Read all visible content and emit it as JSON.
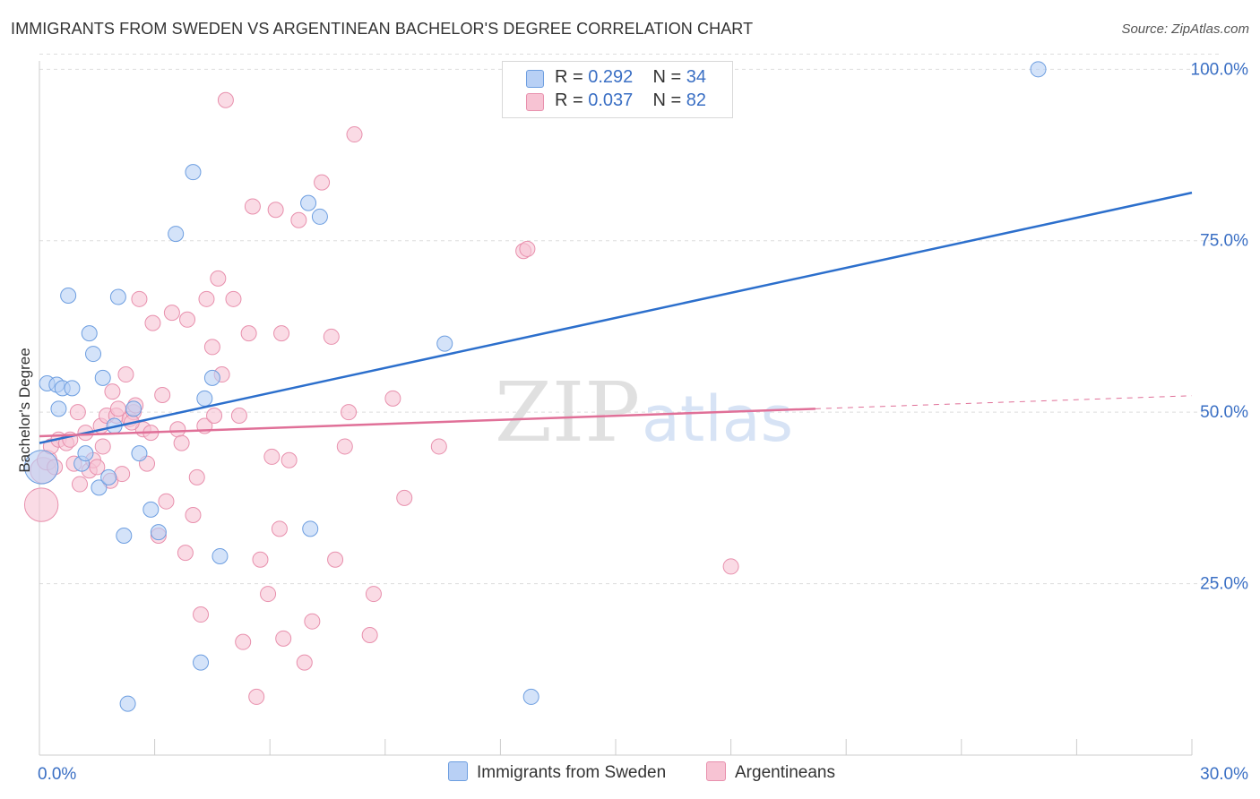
{
  "title": "IMMIGRANTS FROM SWEDEN VS ARGENTINEAN BACHELOR'S DEGREE CORRELATION CHART",
  "source": "Source: ZipAtlas.com",
  "watermark": {
    "zip": "ZIP",
    "atlas": "atlas"
  },
  "legend_top": {
    "rows": [
      {
        "r_label": "R =",
        "r_value": "0.292",
        "n_label": "N =",
        "n_value": "34"
      },
      {
        "r_label": "R =",
        "r_value": "0.037",
        "n_label": "N =",
        "n_value": "82"
      }
    ]
  },
  "legend_bottom": {
    "items": [
      {
        "label": "Immigrants from Sweden"
      },
      {
        "label": "Argentineans"
      }
    ]
  },
  "colors": {
    "sweden_fill": "#b8d0f5",
    "sweden_stroke": "#6d9ee0",
    "sweden_line": "#2c6fcc",
    "arg_fill": "#f7c3d3",
    "arg_stroke": "#e890ad",
    "arg_line": "#e07098",
    "axis_label": "#3a6fc4",
    "grid": "#dddddd"
  },
  "chart_data": {
    "type": "scatter",
    "title": "IMMIGRANTS FROM SWEDEN VS ARGENTINEAN BACHELOR'S DEGREE CORRELATION CHART",
    "xlabel": "",
    "ylabel": "Bachelor's Degree",
    "xlim": [
      0,
      30
    ],
    "ylim": [
      0,
      102
    ],
    "x_tick_labels": [
      {
        "value": 0,
        "label": "0.0%"
      },
      {
        "value": 30,
        "label": "30.0%"
      }
    ],
    "y_tick_labels": [
      {
        "value": 25,
        "label": "25.0%"
      },
      {
        "value": 50,
        "label": "50.0%"
      },
      {
        "value": 75,
        "label": "75.0%"
      },
      {
        "value": 100,
        "label": "100.0%"
      }
    ],
    "series": [
      {
        "name": "Immigrants from Sweden",
        "R": 0.292,
        "N": 34,
        "trend": {
          "x": [
            0,
            30
          ],
          "y": [
            45.5,
            82.0
          ]
        },
        "points": [
          {
            "x": 0.05,
            "y": 42.0,
            "s": 2.2
          },
          {
            "x": 0.2,
            "y": 54.2,
            "s": 1
          },
          {
            "x": 0.45,
            "y": 54.0,
            "s": 1
          },
          {
            "x": 0.5,
            "y": 50.5,
            "s": 1
          },
          {
            "x": 0.6,
            "y": 53.5,
            "s": 1
          },
          {
            "x": 0.75,
            "y": 67.0,
            "s": 1
          },
          {
            "x": 0.85,
            "y": 53.5,
            "s": 1
          },
          {
            "x": 1.1,
            "y": 42.5,
            "s": 1
          },
          {
            "x": 1.2,
            "y": 44.0,
            "s": 1
          },
          {
            "x": 1.3,
            "y": 61.5,
            "s": 1
          },
          {
            "x": 1.4,
            "y": 58.5,
            "s": 1
          },
          {
            "x": 1.55,
            "y": 39.0,
            "s": 1
          },
          {
            "x": 1.65,
            "y": 55.0,
            "s": 1
          },
          {
            "x": 1.8,
            "y": 40.5,
            "s": 1
          },
          {
            "x": 1.95,
            "y": 48.0,
            "s": 1
          },
          {
            "x": 2.05,
            "y": 66.8,
            "s": 1
          },
          {
            "x": 2.2,
            "y": 32.0,
            "s": 1
          },
          {
            "x": 2.3,
            "y": 7.5,
            "s": 1
          },
          {
            "x": 2.45,
            "y": 50.5,
            "s": 1
          },
          {
            "x": 2.6,
            "y": 44.0,
            "s": 1
          },
          {
            "x": 2.9,
            "y": 35.8,
            "s": 1
          },
          {
            "x": 3.1,
            "y": 32.5,
            "s": 1
          },
          {
            "x": 3.55,
            "y": 76.0,
            "s": 1
          },
          {
            "x": 4.0,
            "y": 85.0,
            "s": 1
          },
          {
            "x": 4.2,
            "y": 13.5,
            "s": 1
          },
          {
            "x": 4.3,
            "y": 52.0,
            "s": 1
          },
          {
            "x": 4.5,
            "y": 55.0,
            "s": 1
          },
          {
            "x": 4.7,
            "y": 29.0,
            "s": 1
          },
          {
            "x": 7.0,
            "y": 80.5,
            "s": 1
          },
          {
            "x": 7.05,
            "y": 33.0,
            "s": 1
          },
          {
            "x": 7.3,
            "y": 78.5,
            "s": 1
          },
          {
            "x": 10.55,
            "y": 60.0,
            "s": 1
          },
          {
            "x": 12.8,
            "y": 8.5,
            "s": 1
          },
          {
            "x": 26.0,
            "y": 100.0,
            "s": 1
          }
        ]
      },
      {
        "name": "Argentineans",
        "R": 0.037,
        "N": 82,
        "trend": {
          "x": [
            0,
            20.2
          ],
          "y": [
            46.5,
            50.5
          ]
        },
        "trend_dashed": {
          "x": [
            20.2,
            30
          ],
          "y": [
            50.5,
            52.4
          ]
        },
        "points": [
          {
            "x": 0.05,
            "y": 36.5,
            "s": 2.2
          },
          {
            "x": 0.1,
            "y": 41.5,
            "s": 1.7
          },
          {
            "x": 0.2,
            "y": 43.0,
            "s": 1.3
          },
          {
            "x": 0.3,
            "y": 45.0,
            "s": 1
          },
          {
            "x": 0.4,
            "y": 42.0,
            "s": 1
          },
          {
            "x": 0.5,
            "y": 46.0,
            "s": 1
          },
          {
            "x": 0.7,
            "y": 45.5,
            "s": 1
          },
          {
            "x": 0.8,
            "y": 46.0,
            "s": 1
          },
          {
            "x": 0.9,
            "y": 42.5,
            "s": 1
          },
          {
            "x": 1.0,
            "y": 50.0,
            "s": 1
          },
          {
            "x": 1.05,
            "y": 39.5,
            "s": 1
          },
          {
            "x": 1.2,
            "y": 47.0,
            "s": 1
          },
          {
            "x": 1.3,
            "y": 41.5,
            "s": 1
          },
          {
            "x": 1.4,
            "y": 43.0,
            "s": 1
          },
          {
            "x": 1.5,
            "y": 42.0,
            "s": 1
          },
          {
            "x": 1.6,
            "y": 48.0,
            "s": 1
          },
          {
            "x": 1.65,
            "y": 45.0,
            "s": 1
          },
          {
            "x": 1.75,
            "y": 49.5,
            "s": 1
          },
          {
            "x": 1.85,
            "y": 40.0,
            "s": 1
          },
          {
            "x": 1.9,
            "y": 53.0,
            "s": 1
          },
          {
            "x": 2.0,
            "y": 49.5,
            "s": 1
          },
          {
            "x": 2.05,
            "y": 50.5,
            "s": 1
          },
          {
            "x": 2.15,
            "y": 41.0,
            "s": 1
          },
          {
            "x": 2.25,
            "y": 55.5,
            "s": 1
          },
          {
            "x": 2.35,
            "y": 49.0,
            "s": 1
          },
          {
            "x": 2.45,
            "y": 50.0,
            "s": 1
          },
          {
            "x": 2.5,
            "y": 51.0,
            "s": 1
          },
          {
            "x": 2.6,
            "y": 66.5,
            "s": 1
          },
          {
            "x": 2.7,
            "y": 47.5,
            "s": 1
          },
          {
            "x": 2.8,
            "y": 42.5,
            "s": 1
          },
          {
            "x": 2.9,
            "y": 47.0,
            "s": 1
          },
          {
            "x": 2.95,
            "y": 63.0,
            "s": 1
          },
          {
            "x": 3.1,
            "y": 32.0,
            "s": 1
          },
          {
            "x": 3.2,
            "y": 52.5,
            "s": 1
          },
          {
            "x": 3.3,
            "y": 37.0,
            "s": 1
          },
          {
            "x": 3.45,
            "y": 64.5,
            "s": 1
          },
          {
            "x": 3.6,
            "y": 47.5,
            "s": 1
          },
          {
            "x": 3.7,
            "y": 45.5,
            "s": 1
          },
          {
            "x": 3.8,
            "y": 29.5,
            "s": 1
          },
          {
            "x": 3.85,
            "y": 63.5,
            "s": 1
          },
          {
            "x": 4.0,
            "y": 35.0,
            "s": 1
          },
          {
            "x": 4.1,
            "y": 40.5,
            "s": 1
          },
          {
            "x": 4.2,
            "y": 20.5,
            "s": 1
          },
          {
            "x": 4.3,
            "y": 48.0,
            "s": 1
          },
          {
            "x": 4.35,
            "y": 66.5,
            "s": 1
          },
          {
            "x": 4.5,
            "y": 59.5,
            "s": 1
          },
          {
            "x": 4.55,
            "y": 49.5,
            "s": 1
          },
          {
            "x": 4.65,
            "y": 69.5,
            "s": 1
          },
          {
            "x": 4.75,
            "y": 55.5,
            "s": 1
          },
          {
            "x": 4.85,
            "y": 95.5,
            "s": 1
          },
          {
            "x": 5.05,
            "y": 66.5,
            "s": 1
          },
          {
            "x": 5.2,
            "y": 49.5,
            "s": 1
          },
          {
            "x": 5.3,
            "y": 16.5,
            "s": 1
          },
          {
            "x": 5.45,
            "y": 61.5,
            "s": 1
          },
          {
            "x": 5.55,
            "y": 80.0,
            "s": 1
          },
          {
            "x": 5.65,
            "y": 8.5,
            "s": 1
          },
          {
            "x": 5.75,
            "y": 28.5,
            "s": 1
          },
          {
            "x": 5.95,
            "y": 23.5,
            "s": 1
          },
          {
            "x": 6.05,
            "y": 43.5,
            "s": 1
          },
          {
            "x": 6.15,
            "y": 79.5,
            "s": 1
          },
          {
            "x": 6.25,
            "y": 33.0,
            "s": 1
          },
          {
            "x": 6.3,
            "y": 61.5,
            "s": 1
          },
          {
            "x": 6.35,
            "y": 17.0,
            "s": 1
          },
          {
            "x": 6.5,
            "y": 43.0,
            "s": 1
          },
          {
            "x": 6.75,
            "y": 78.0,
            "s": 1
          },
          {
            "x": 6.9,
            "y": 13.5,
            "s": 1
          },
          {
            "x": 7.1,
            "y": 19.5,
            "s": 1
          },
          {
            "x": 7.35,
            "y": 83.5,
            "s": 1
          },
          {
            "x": 7.6,
            "y": 61.0,
            "s": 1
          },
          {
            "x": 7.7,
            "y": 28.5,
            "s": 1
          },
          {
            "x": 7.95,
            "y": 45.0,
            "s": 1
          },
          {
            "x": 8.05,
            "y": 50.0,
            "s": 1
          },
          {
            "x": 8.2,
            "y": 90.5,
            "s": 1
          },
          {
            "x": 8.6,
            "y": 17.5,
            "s": 1
          },
          {
            "x": 8.7,
            "y": 23.5,
            "s": 1
          },
          {
            "x": 9.2,
            "y": 52.0,
            "s": 1
          },
          {
            "x": 9.5,
            "y": 37.5,
            "s": 1
          },
          {
            "x": 10.4,
            "y": 45.0,
            "s": 1
          },
          {
            "x": 12.6,
            "y": 73.5,
            "s": 1
          },
          {
            "x": 12.7,
            "y": 73.8,
            "s": 1
          },
          {
            "x": 18.0,
            "y": 27.5,
            "s": 1
          },
          {
            "x": 2.4,
            "y": 48.5,
            "s": 1
          }
        ]
      }
    ]
  }
}
